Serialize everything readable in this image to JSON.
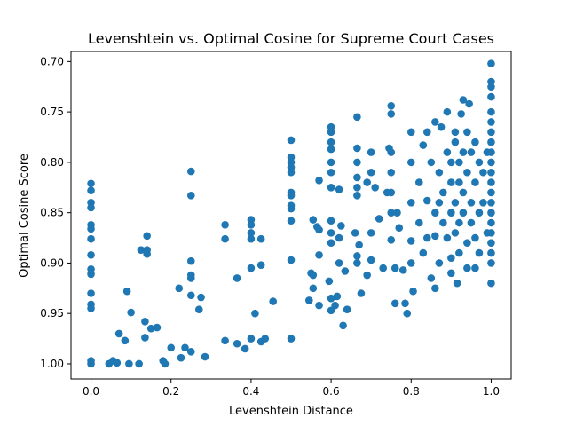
{
  "chart_data": {
    "type": "scatter",
    "title": "Levenshtein vs. Optimal Cosine for Supreme Court Cases",
    "xlabel": "Levenshtein Distance",
    "ylabel": "Optimal Cosine Score",
    "xlim": [
      -0.05,
      1.05
    ],
    "ylim": [
      1.015,
      0.69
    ],
    "y_inverted": true,
    "grid": false,
    "legend": "none",
    "marker_color": "#1f77b4",
    "x_ticks": [
      "0.0",
      "0.2",
      "0.4",
      "0.6",
      "0.8",
      "1.0"
    ],
    "y_ticks": [
      "0.70",
      "0.75",
      "0.80",
      "0.85",
      "0.90",
      "0.95",
      "1.00"
    ],
    "points": [
      [
        0.0,
        0.821
      ],
      [
        0.0,
        0.828
      ],
      [
        0.0,
        0.84
      ],
      [
        0.0,
        0.845
      ],
      [
        0.0,
        0.862
      ],
      [
        0.0,
        0.866
      ],
      [
        0.0,
        0.876
      ],
      [
        0.0,
        0.892
      ],
      [
        0.0,
        0.906
      ],
      [
        0.0,
        0.911
      ],
      [
        0.0,
        0.93
      ],
      [
        0.0,
        0.941
      ],
      [
        0.0,
        0.945
      ],
      [
        0.0,
        0.997
      ],
      [
        0.0,
        1.0
      ],
      [
        0.045,
        1.0
      ],
      [
        0.055,
        0.997
      ],
      [
        0.065,
        0.999
      ],
      [
        0.07,
        0.97
      ],
      [
        0.085,
        0.977
      ],
      [
        0.09,
        0.928
      ],
      [
        0.095,
        1.0
      ],
      [
        0.1,
        0.949
      ],
      [
        0.12,
        1.0
      ],
      [
        0.125,
        0.887
      ],
      [
        0.135,
        0.958
      ],
      [
        0.135,
        0.974
      ],
      [
        0.14,
        0.873
      ],
      [
        0.14,
        0.887
      ],
      [
        0.14,
        0.891
      ],
      [
        0.15,
        0.965
      ],
      [
        0.165,
        0.964
      ],
      [
        0.18,
        0.997
      ],
      [
        0.185,
        1.0
      ],
      [
        0.2,
        0.984
      ],
      [
        0.22,
        0.925
      ],
      [
        0.225,
        0.994
      ],
      [
        0.235,
        0.984
      ],
      [
        0.25,
        0.809
      ],
      [
        0.25,
        0.833
      ],
      [
        0.25,
        0.898
      ],
      [
        0.25,
        0.912
      ],
      [
        0.25,
        0.915
      ],
      [
        0.25,
        0.932
      ],
      [
        0.25,
        0.988
      ],
      [
        0.27,
        0.946
      ],
      [
        0.275,
        0.934
      ],
      [
        0.285,
        0.993
      ],
      [
        0.335,
        0.862
      ],
      [
        0.335,
        0.876
      ],
      [
        0.335,
        0.977
      ],
      [
        0.365,
        0.915
      ],
      [
        0.365,
        0.98
      ],
      [
        0.385,
        0.985
      ],
      [
        0.4,
        0.857
      ],
      [
        0.4,
        0.862
      ],
      [
        0.4,
        0.87
      ],
      [
        0.4,
        0.876
      ],
      [
        0.4,
        0.905
      ],
      [
        0.4,
        0.975
      ],
      [
        0.41,
        0.95
      ],
      [
        0.425,
        0.876
      ],
      [
        0.425,
        0.902
      ],
      [
        0.425,
        0.978
      ],
      [
        0.435,
        0.975
      ],
      [
        0.455,
        0.938
      ],
      [
        0.5,
        0.778
      ],
      [
        0.5,
        0.795
      ],
      [
        0.5,
        0.8
      ],
      [
        0.5,
        0.805
      ],
      [
        0.5,
        0.81
      ],
      [
        0.5,
        0.83
      ],
      [
        0.5,
        0.833
      ],
      [
        0.5,
        0.843
      ],
      [
        0.5,
        0.846
      ],
      [
        0.5,
        0.858
      ],
      [
        0.5,
        0.897
      ],
      [
        0.5,
        0.975
      ],
      [
        0.545,
        0.937
      ],
      [
        0.55,
        0.91
      ],
      [
        0.555,
        0.857
      ],
      [
        0.555,
        0.912
      ],
      [
        0.555,
        0.925
      ],
      [
        0.565,
        0.864
      ],
      [
        0.57,
        0.867
      ],
      [
        0.57,
        0.892
      ],
      [
        0.57,
        0.818
      ],
      [
        0.57,
        0.942
      ],
      [
        0.595,
        0.918
      ],
      [
        0.6,
        0.765
      ],
      [
        0.6,
        0.77
      ],
      [
        0.6,
        0.78
      ],
      [
        0.6,
        0.787
      ],
      [
        0.6,
        0.8
      ],
      [
        0.6,
        0.81
      ],
      [
        0.6,
        0.825
      ],
      [
        0.6,
        0.858
      ],
      [
        0.6,
        0.87
      ],
      [
        0.6,
        0.88
      ],
      [
        0.6,
        0.935
      ],
      [
        0.6,
        0.947
      ],
      [
        0.61,
        0.942
      ],
      [
        0.615,
        0.933
      ],
      [
        0.62,
        0.827
      ],
      [
        0.62,
        0.875
      ],
      [
        0.62,
        0.9
      ],
      [
        0.625,
        0.863
      ],
      [
        0.63,
        0.962
      ],
      [
        0.635,
        0.908
      ],
      [
        0.64,
        0.946
      ],
      [
        0.66,
        0.87
      ],
      [
        0.665,
        0.755
      ],
      [
        0.665,
        0.786
      ],
      [
        0.665,
        0.8
      ],
      [
        0.665,
        0.815
      ],
      [
        0.665,
        0.825
      ],
      [
        0.665,
        0.833
      ],
      [
        0.665,
        0.893
      ],
      [
        0.665,
        0.9
      ],
      [
        0.67,
        0.882
      ],
      [
        0.675,
        0.93
      ],
      [
        0.69,
        0.82
      ],
      [
        0.69,
        0.912
      ],
      [
        0.7,
        0.79
      ],
      [
        0.7,
        0.81
      ],
      [
        0.7,
        0.87
      ],
      [
        0.7,
        0.897
      ],
      [
        0.71,
        0.825
      ],
      [
        0.72,
        0.856
      ],
      [
        0.73,
        0.905
      ],
      [
        0.74,
        0.83
      ],
      [
        0.745,
        0.786
      ],
      [
        0.75,
        0.744
      ],
      [
        0.75,
        0.752
      ],
      [
        0.75,
        0.79
      ],
      [
        0.75,
        0.81
      ],
      [
        0.75,
        0.83
      ],
      [
        0.75,
        0.85
      ],
      [
        0.75,
        0.877
      ],
      [
        0.76,
        0.905
      ],
      [
        0.76,
        0.94
      ],
      [
        0.765,
        0.85
      ],
      [
        0.77,
        0.865
      ],
      [
        0.78,
        0.907
      ],
      [
        0.785,
        0.94
      ],
      [
        0.79,
        0.95
      ],
      [
        0.8,
        0.77
      ],
      [
        0.8,
        0.8
      ],
      [
        0.8,
        0.84
      ],
      [
        0.8,
        0.878
      ],
      [
        0.8,
        0.9
      ],
      [
        0.805,
        0.928
      ],
      [
        0.82,
        0.82
      ],
      [
        0.82,
        0.86
      ],
      [
        0.83,
        0.783
      ],
      [
        0.83,
        0.89
      ],
      [
        0.84,
        0.77
      ],
      [
        0.84,
        0.838
      ],
      [
        0.84,
        0.875
      ],
      [
        0.85,
        0.915
      ],
      [
        0.85,
        0.8
      ],
      [
        0.86,
        0.76
      ],
      [
        0.86,
        0.85
      ],
      [
        0.86,
        0.873
      ],
      [
        0.86,
        0.925
      ],
      [
        0.87,
        0.81
      ],
      [
        0.87,
        0.84
      ],
      [
        0.87,
        0.9
      ],
      [
        0.875,
        0.765
      ],
      [
        0.88,
        0.83
      ],
      [
        0.88,
        0.86
      ],
      [
        0.89,
        0.75
      ],
      [
        0.89,
        0.79
      ],
      [
        0.89,
        0.875
      ],
      [
        0.9,
        0.8
      ],
      [
        0.9,
        0.82
      ],
      [
        0.9,
        0.85
      ],
      [
        0.9,
        0.895
      ],
      [
        0.9,
        0.91
      ],
      [
        0.91,
        0.77
      ],
      [
        0.91,
        0.78
      ],
      [
        0.91,
        0.84
      ],
      [
        0.91,
        0.87
      ],
      [
        0.915,
        0.92
      ],
      [
        0.92,
        0.8
      ],
      [
        0.92,
        0.82
      ],
      [
        0.92,
        0.86
      ],
      [
        0.92,
        0.89
      ],
      [
        0.925,
        0.752
      ],
      [
        0.93,
        0.738
      ],
      [
        0.93,
        0.79
      ],
      [
        0.93,
        0.83
      ],
      [
        0.93,
        0.85
      ],
      [
        0.94,
        0.77
      ],
      [
        0.94,
        0.81
      ],
      [
        0.94,
        0.88
      ],
      [
        0.94,
        0.905
      ],
      [
        0.945,
        0.742
      ],
      [
        0.95,
        0.79
      ],
      [
        0.95,
        0.84
      ],
      [
        0.95,
        0.86
      ],
      [
        0.96,
        0.78
      ],
      [
        0.96,
        0.82
      ],
      [
        0.96,
        0.875
      ],
      [
        0.96,
        0.905
      ],
      [
        0.97,
        0.8
      ],
      [
        0.97,
        0.85
      ],
      [
        0.97,
        0.89
      ],
      [
        0.98,
        0.81
      ],
      [
        0.98,
        0.84
      ],
      [
        0.99,
        0.79
      ],
      [
        0.99,
        0.87
      ],
      [
        1.0,
        0.702
      ],
      [
        1.0,
        0.72
      ],
      [
        1.0,
        0.725
      ],
      [
        1.0,
        0.735
      ],
      [
        1.0,
        0.75
      ],
      [
        1.0,
        0.76
      ],
      [
        1.0,
        0.77
      ],
      [
        1.0,
        0.78
      ],
      [
        1.0,
        0.79
      ],
      [
        1.0,
        0.8
      ],
      [
        1.0,
        0.81
      ],
      [
        1.0,
        0.82
      ],
      [
        1.0,
        0.83
      ],
      [
        1.0,
        0.84
      ],
      [
        1.0,
        0.85
      ],
      [
        1.0,
        0.86
      ],
      [
        1.0,
        0.87
      ],
      [
        1.0,
        0.88
      ],
      [
        1.0,
        0.89
      ],
      [
        1.0,
        0.9
      ],
      [
        1.0,
        0.92
      ]
    ]
  }
}
